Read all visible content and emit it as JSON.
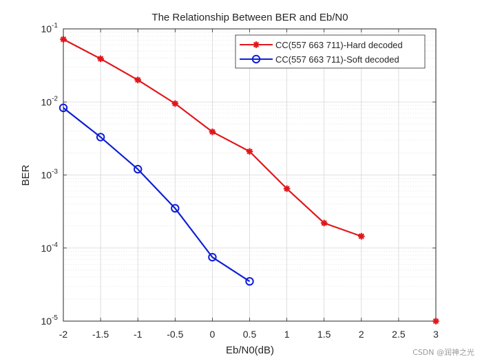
{
  "chart_data": {
    "type": "line",
    "title": "The Relationship Between BER and Eb/N0",
    "xlabel": "Eb/N0(dB)",
    "ylabel": "BER",
    "xlim": [
      -2,
      3
    ],
    "ylim": [
      1e-05,
      0.1
    ],
    "yscale": "log",
    "grid": true,
    "legend_position": "top-right",
    "x_ticks": [
      -2,
      -1.5,
      -1,
      -0.5,
      0,
      0.5,
      1,
      1.5,
      2,
      2.5,
      3
    ],
    "x_tick_labels": [
      "-2",
      "-1.5",
      "-1",
      "-0.5",
      "0",
      "0.5",
      "1",
      "1.5",
      "2",
      "2.5",
      "3"
    ],
    "y_ticks": [
      {
        "value": 0.1,
        "base": "10",
        "exp": "-1"
      },
      {
        "value": 0.01,
        "base": "10",
        "exp": "-2"
      },
      {
        "value": 0.001,
        "base": "10",
        "exp": "-3"
      },
      {
        "value": 0.0001,
        "base": "10",
        "exp": "-4"
      },
      {
        "value": 1e-05,
        "base": "10",
        "exp": "-5"
      }
    ],
    "series": [
      {
        "name": "CC(557 663 711)-Hard decoded",
        "color": "#e0161b",
        "marker": "asterisk",
        "x": [
          -2,
          -1.5,
          -1,
          -0.5,
          0,
          0.5,
          1,
          1.5,
          2
        ],
        "values": [
          0.072,
          0.039,
          0.02,
          0.0095,
          0.0039,
          0.0021,
          0.00065,
          0.00022,
          0.000145
        ]
      },
      {
        "name": "CC(557 663 711)-Soft decoded",
        "color": "#0d1ed6",
        "marker": "circle",
        "x": [
          -2,
          -1.5,
          -1,
          -0.5,
          0,
          0.5
        ],
        "values": [
          0.0083,
          0.0033,
          0.0012,
          0.00035,
          7.5e-05,
          3.5e-05
        ]
      }
    ],
    "annotations": [
      {
        "type": "marker",
        "marker": "asterisk",
        "color": "#e0161b",
        "x": 3,
        "y": 1e-05
      }
    ]
  },
  "watermark": "CSDN @润神之光"
}
